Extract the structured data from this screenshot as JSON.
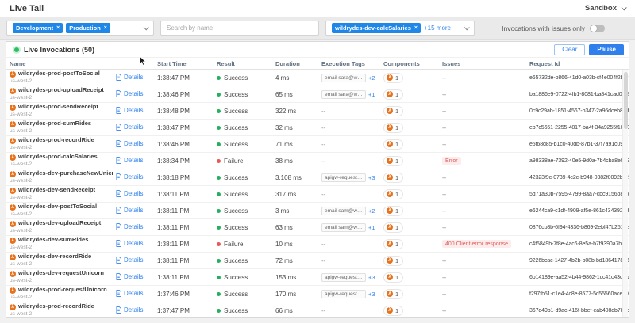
{
  "header": {
    "title": "Live Tail",
    "environment": "Sandbox"
  },
  "filters": {
    "environments": [
      {
        "label": "Development"
      },
      {
        "label": "Production"
      }
    ],
    "search_placeholder": "Search by name",
    "functions": {
      "chip": "wildrydes-dev-calcSalaries",
      "more": "+15 more"
    },
    "issues_toggle_label": "Invocations with issues only",
    "issues_toggle_on": false
  },
  "panel": {
    "title": "Live Invocations (50)",
    "clear_label": "Clear",
    "pause_label": "Pause"
  },
  "table": {
    "columns": [
      "Name",
      "",
      "Start Time",
      "Result",
      "Duration",
      "Execution Tags",
      "Components",
      "Issues",
      "Request Id"
    ],
    "details_label": "Details",
    "empty_placeholder": "--",
    "rows": [
      {
        "name": "wildrydes-prod-postToSocial",
        "region": "us-west-2",
        "start_time": "1:38:47 PM",
        "result": "Success",
        "duration": "4 ms",
        "tag": "email sara@wild...",
        "tag_more": "+2",
        "components": "1",
        "issue": null,
        "request_id": "e65732de-b866-41d0-a03b-cf4e004f2b1f"
      },
      {
        "name": "wildrydes-prod-uploadReceipt",
        "region": "us-west-2",
        "start_time": "1:38:46 PM",
        "result": "Success",
        "duration": "65 ms",
        "tag": "email sara@wild...",
        "tag_more": "+1",
        "components": "1",
        "issue": null,
        "request_id": "ba1886e9-0722-4fb1-8081-ba841cad0c59"
      },
      {
        "name": "wildrydes-prod-sendReceipt",
        "region": "us-west-2",
        "start_time": "1:38:48 PM",
        "result": "Success",
        "duration": "322 ms",
        "tag": null,
        "tag_more": null,
        "components": "1",
        "issue": null,
        "request_id": "0c9c29ab-1851-4567-b347-2a96dceb8ed9"
      },
      {
        "name": "wildrydes-prod-sumRides",
        "region": "us-west-2",
        "start_time": "1:38:47 PM",
        "result": "Success",
        "duration": "32 ms",
        "tag": null,
        "tag_more": null,
        "components": "1",
        "issue": null,
        "request_id": "eb7c5651-2255-4817-ba4f-34a9255f10a0"
      },
      {
        "name": "wildrydes-prod-recordRide",
        "region": "us-west-2",
        "start_time": "1:38:46 PM",
        "result": "Success",
        "duration": "71 ms",
        "tag": null,
        "tag_more": null,
        "components": "1",
        "issue": null,
        "request_id": "e5f68d85-b1c0-40db-87b1-37f7a91c09f5"
      },
      {
        "name": "wildrydes-prod-calcSalaries",
        "region": "us-west-2",
        "start_time": "1:38:34 PM",
        "result": "Failure",
        "duration": "38 ms",
        "tag": null,
        "tag_more": null,
        "components": "1",
        "issue": "Error",
        "request_id": "a98338ae-7392-40e5-9d0a-7b4cba8e9695"
      },
      {
        "name": "wildrydes-dev-purchaseNewUnicron",
        "region": "us-west-2",
        "start_time": "1:38:18 PM",
        "result": "Success",
        "duration": "3,108 ms",
        "tag": "apigw-request-id...",
        "tag_more": "+3",
        "components": "1",
        "issue": null,
        "request_id": "42323f9c-0739-4c2c-b948-0382f0092bc2"
      },
      {
        "name": "wildrydes-dev-sendReceipt",
        "region": "us-west-2",
        "start_time": "1:38:11 PM",
        "result": "Success",
        "duration": "317 ms",
        "tag": null,
        "tag_more": null,
        "components": "1",
        "issue": null,
        "request_id": "5d71a30b-7595-4799-8aa7-cbc9156b8fad"
      },
      {
        "name": "wildrydes-dev-postToSocial",
        "region": "us-west-2",
        "start_time": "1:38:11 PM",
        "result": "Success",
        "duration": "3 ms",
        "tag": "email sam@wild...",
        "tag_more": "+2",
        "components": "1",
        "issue": null,
        "request_id": "e6244ca9-c1df-4909-af5e-861c4343927d"
      },
      {
        "name": "wildrydes-dev-uploadReceipt",
        "region": "us-west-2",
        "start_time": "1:38:11 PM",
        "result": "Success",
        "duration": "63 ms",
        "tag": "email sam@wild...",
        "tag_more": "+1",
        "components": "1",
        "issue": null,
        "request_id": "0876cb8b-6f94-4336-b869-2ebf47b251de"
      },
      {
        "name": "wildrydes-dev-sumRides",
        "region": "us-west-2",
        "start_time": "1:38:11 PM",
        "result": "Failure",
        "duration": "10 ms",
        "tag": null,
        "tag_more": null,
        "components": "1",
        "issue": "400 Client error response",
        "request_id": "c4f5849b-7f8e-4ac6-8e5a-b7f9390a7b3e"
      },
      {
        "name": "wildrydes-dev-recordRide",
        "region": "us-west-2",
        "start_time": "1:38:11 PM",
        "result": "Success",
        "duration": "72 ms",
        "tag": null,
        "tag_more": null,
        "components": "1",
        "issue": null,
        "request_id": "9226bcac-1427-4b2b-b08b-bd1864178b87"
      },
      {
        "name": "wildrydes-dev-requestUnicorn",
        "region": "us-west-2",
        "start_time": "1:38:11 PM",
        "result": "Success",
        "duration": "153 ms",
        "tag": "apigw-request-id...",
        "tag_more": "+3",
        "components": "1",
        "issue": null,
        "request_id": "6b14189e-aa52-4b44-9862-1cc41c43d5fd"
      },
      {
        "name": "wildrydes-prod-requestUnicorn",
        "region": "us-west-2",
        "start_time": "1:37:46 PM",
        "result": "Success",
        "duration": "170 ms",
        "tag": "apigw-request-id...",
        "tag_more": "+3",
        "components": "1",
        "issue": null,
        "request_id": "f297fb51-c1e4-4c8e-8577-5c55560acea0"
      },
      {
        "name": "wildrydes-prod-recordRide",
        "region": "us-west-2",
        "start_time": "1:37:47 PM",
        "result": "Success",
        "duration": "66 ms",
        "tag": null,
        "tag_more": null,
        "components": "1",
        "issue": null,
        "request_id": "367d49b1-d9ac-416f-bbef-eab408db789b"
      }
    ]
  },
  "colors": {
    "accent_blue": "#2f80ed",
    "chip_blue": "#1f87e8",
    "success_green": "#27ae60",
    "failure_red": "#eb5757",
    "lambda_orange": "#e8721c",
    "issue_bg": "#fdecec"
  }
}
